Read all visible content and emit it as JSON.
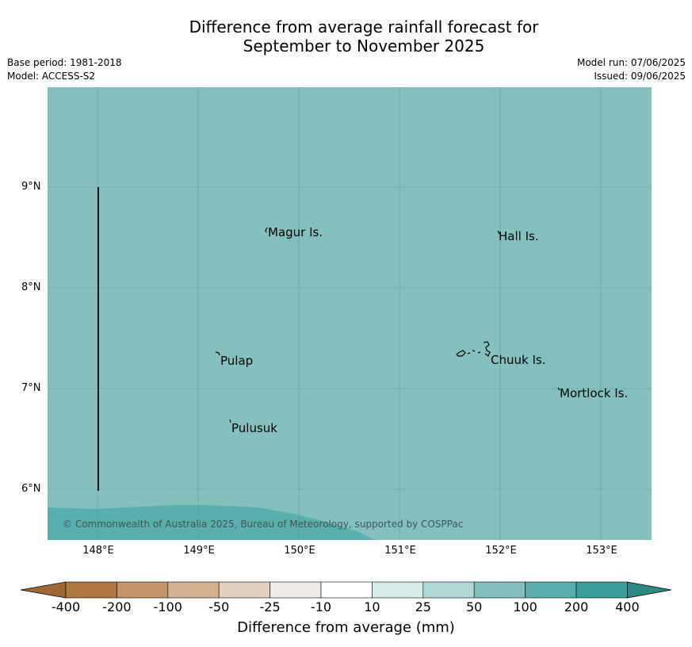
{
  "title_line1": "Difference from average rainfall forecast for",
  "title_line2": "September to November 2025",
  "meta_left": {
    "base_period": "Base period: 1981-2018",
    "model": "Model: ACCESS-S2"
  },
  "meta_right": {
    "model_run": "Model run: 07/06/2025",
    "issued": "Issued: 09/06/2025"
  },
  "map": {
    "background_color": "#83c0be",
    "lower_band_color": "#5aaeab",
    "lat_ticks": [
      "9°N",
      "8°N",
      "7°N",
      "6°N"
    ],
    "lon_ticks": [
      "148°E",
      "149°E",
      "150°E",
      "151°E",
      "152°E",
      "153°E"
    ],
    "places": {
      "magur": "Magur Is.",
      "hall": "Hall Is.",
      "pulap": "Pulap",
      "chuuk": "Chuuk Is.",
      "mortlock": "Mortlock Is.",
      "pulusuk": "Pulusuk"
    },
    "copyright": "© Commonwealth of Australia 2025, Bureau of Meteorology, supported by COSPPac"
  },
  "colorbar": {
    "labels": [
      "-400",
      "-200",
      "-100",
      "-50",
      "-25",
      "-10",
      "10",
      "25",
      "50",
      "100",
      "200",
      "400"
    ],
    "colors": [
      "#b07840",
      "#c29466",
      "#d3b08f",
      "#e3d0be",
      "#f1ece7",
      "#ffffff",
      "#d8ecea",
      "#afd9d6",
      "#83c0be",
      "#5aaeab",
      "#3a9e99"
    ],
    "under_color": "#9e6a32",
    "over_color": "#2f8983",
    "title": "Difference from average (mm)"
  }
}
